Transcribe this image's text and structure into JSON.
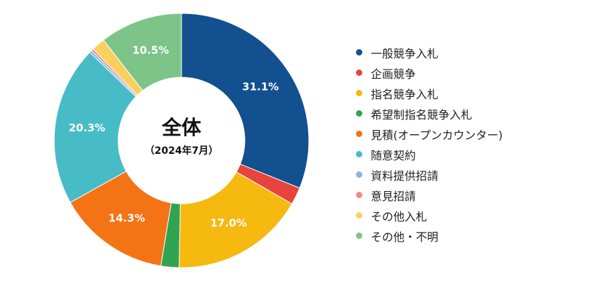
{
  "chart_data": {
    "type": "pie",
    "donut": true,
    "center_title": "全体",
    "center_subtitle": "（2024年7月）",
    "legend_position": "right",
    "slices": [
      {
        "name": "一般競争入札",
        "value": 31.1,
        "label": "31.1%",
        "color": "#12508F"
      },
      {
        "name": "企画競争",
        "value": 2.2,
        "label": "",
        "color": "#E8433D"
      },
      {
        "name": "指名競争入札",
        "value": 17.0,
        "label": "17.0%",
        "color": "#F5B90F"
      },
      {
        "name": "希望制指名競争入札",
        "value": 2.3,
        "label": "",
        "color": "#32A351"
      },
      {
        "name": "見積(オープンカウンター)",
        "value": 14.3,
        "label": "14.3%",
        "color": "#F47315"
      },
      {
        "name": "随意契約",
        "value": 20.3,
        "label": "20.3%",
        "color": "#48BCC6"
      },
      {
        "name": "資料提供招請",
        "value": 0.3,
        "label": "",
        "color": "#8AB0EA"
      },
      {
        "name": "意見招請",
        "value": 0.3,
        "label": "",
        "color": "#E88E86"
      },
      {
        "name": "その他入札",
        "value": 1.7,
        "label": "",
        "color": "#F9D05C"
      },
      {
        "name": "その他・不明",
        "value": 10.5,
        "label": "10.5%",
        "color": "#7CC487"
      }
    ]
  }
}
